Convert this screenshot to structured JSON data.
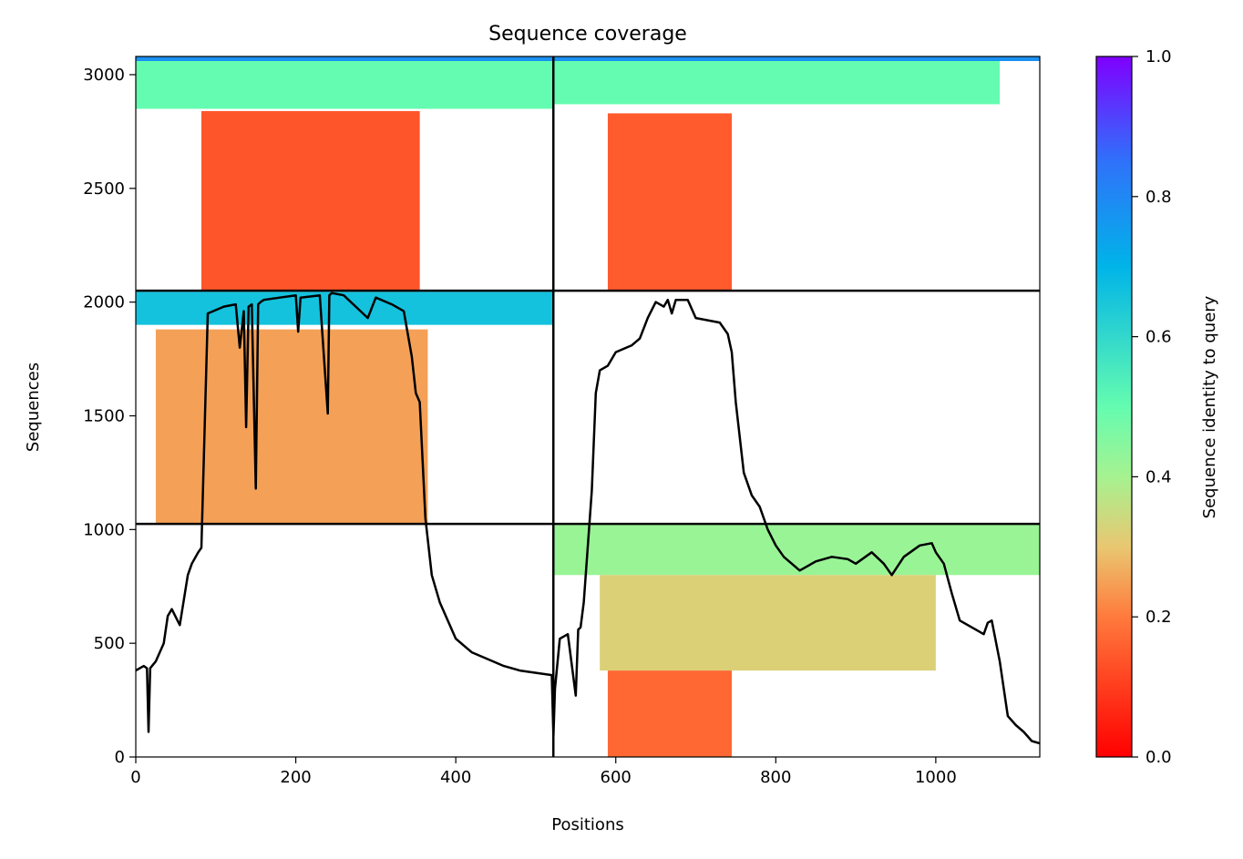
{
  "chart_data": {
    "type": "heatmap",
    "title": "Sequence coverage",
    "xlabel": "Positions",
    "ylabel": "Sequences",
    "xlim": [
      0,
      1130
    ],
    "ylim": [
      0,
      3080
    ],
    "xticks": [
      0,
      200,
      400,
      600,
      800,
      1000
    ],
    "yticks": [
      0,
      500,
      1000,
      1500,
      2000,
      2500,
      3000
    ],
    "grid": false,
    "colorbar": {
      "label": "Sequence identity to query",
      "min": 0.0,
      "max": 1.0,
      "ticks": [
        "0.0",
        "0.2",
        "0.4",
        "0.6",
        "0.8",
        "1.0"
      ],
      "colormap": "rainbow_r"
    },
    "dividers": {
      "x": [
        522
      ],
      "y": [
        1025,
        2050
      ]
    },
    "blocks": [
      {
        "x_start": 0,
        "x_end": 522,
        "y_start": 2850,
        "y_end": 3070,
        "identity": 0.5,
        "note": "top band"
      },
      {
        "x_start": 82,
        "x_end": 355,
        "y_start": 2050,
        "y_end": 2840,
        "identity": 0.14
      },
      {
        "x_start": 0,
        "x_end": 522,
        "y_start": 1900,
        "y_end": 2045,
        "identity": 0.66
      },
      {
        "x_start": 25,
        "x_end": 365,
        "y_start": 1025,
        "y_end": 1880,
        "identity": 0.25
      },
      {
        "x_start": 522,
        "x_end": 1080,
        "y_start": 2870,
        "y_end": 3070,
        "identity": 0.5
      },
      {
        "x_start": 590,
        "x_end": 745,
        "y_start": 2050,
        "y_end": 2830,
        "identity": 0.15
      },
      {
        "x_start": 522,
        "x_end": 1130,
        "y_start": 800,
        "y_end": 1020,
        "identity": 0.42
      },
      {
        "x_start": 580,
        "x_end": 1000,
        "y_start": 380,
        "y_end": 800,
        "identity": 0.32
      },
      {
        "x_start": 590,
        "x_end": 745,
        "y_start": 0,
        "y_end": 380,
        "identity": 0.17
      }
    ],
    "coverage_line": {
      "x": [
        0,
        10,
        14,
        16,
        18,
        25,
        35,
        40,
        45,
        55,
        65,
        70,
        78,
        82,
        90,
        110,
        125,
        130,
        135,
        138,
        141,
        145,
        150,
        153,
        156,
        160,
        180,
        200,
        203,
        206,
        230,
        240,
        242,
        245,
        260,
        290,
        300,
        320,
        335,
        345,
        350,
        355,
        362,
        370,
        380,
        400,
        420,
        440,
        460,
        480,
        500,
        520,
        522,
        524,
        530,
        540,
        550,
        553,
        556,
        560,
        570,
        575,
        580,
        590,
        600,
        620,
        630,
        640,
        650,
        660,
        665,
        670,
        675,
        690,
        700,
        730,
        740,
        745,
        750,
        760,
        770,
        780,
        790,
        800,
        810,
        830,
        850,
        870,
        890,
        900,
        920,
        935,
        945,
        960,
        980,
        995,
        1000,
        1010,
        1020,
        1030,
        1040,
        1050,
        1060,
        1065,
        1070,
        1080,
        1090,
        1100,
        1110,
        1120,
        1130
      ],
      "y": [
        380,
        400,
        390,
        110,
        390,
        420,
        500,
        620,
        650,
        580,
        800,
        850,
        900,
        920,
        1950,
        1980,
        1990,
        1800,
        1960,
        1450,
        1980,
        1990,
        1180,
        1990,
        2000,
        2010,
        2020,
        2030,
        1870,
        2020,
        2030,
        1510,
        2030,
        2040,
        2030,
        1930,
        2020,
        1990,
        1960,
        1760,
        1600,
        1560,
        1050,
        800,
        680,
        520,
        460,
        430,
        400,
        380,
        370,
        360,
        90,
        300,
        520,
        540,
        270,
        560,
        570,
        680,
        1170,
        1600,
        1700,
        1720,
        1780,
        1810,
        1840,
        1930,
        2000,
        1980,
        2010,
        1950,
        2010,
        2010,
        1930,
        1910,
        1860,
        1780,
        1560,
        1250,
        1150,
        1100,
        1000,
        930,
        880,
        820,
        860,
        880,
        870,
        850,
        900,
        850,
        800,
        880,
        930,
        940,
        900,
        850,
        720,
        600,
        580,
        560,
        540,
        590,
        600,
        420,
        180,
        140,
        110,
        70,
        60
      ],
      "color": "#000000"
    }
  }
}
